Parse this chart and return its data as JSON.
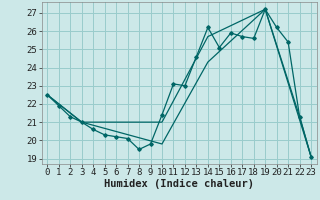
{
  "xlabel": "Humidex (Indice chaleur)",
  "background_color": "#cce8e8",
  "grid_color": "#99cccc",
  "line_color": "#006666",
  "xlim": [
    -0.5,
    23.5
  ],
  "ylim": [
    18.7,
    27.6
  ],
  "yticks": [
    19,
    20,
    21,
    22,
    23,
    24,
    25,
    26,
    27
  ],
  "xticks": [
    0,
    1,
    2,
    3,
    4,
    5,
    6,
    7,
    8,
    9,
    10,
    11,
    12,
    13,
    14,
    15,
    16,
    17,
    18,
    19,
    20,
    21,
    22,
    23
  ],
  "series1_x": [
    0,
    1,
    2,
    3,
    4,
    5,
    6,
    7,
    8,
    9,
    10,
    11,
    12,
    13,
    14,
    15,
    16,
    17,
    18,
    19,
    20,
    21,
    22,
    23
  ],
  "series1_y": [
    22.5,
    21.9,
    21.3,
    21.0,
    20.6,
    20.3,
    20.2,
    20.1,
    19.5,
    19.8,
    21.4,
    23.1,
    23.0,
    24.6,
    26.2,
    25.1,
    25.9,
    25.7,
    25.6,
    27.2,
    26.2,
    25.4,
    21.3,
    19.1
  ],
  "series2_x": [
    0,
    3,
    10,
    14,
    19,
    22,
    23
  ],
  "series2_y": [
    22.5,
    21.0,
    21.0,
    25.7,
    27.2,
    21.3,
    19.1
  ],
  "series3_x": [
    0,
    3,
    10,
    14,
    19,
    23
  ],
  "series3_y": [
    22.5,
    21.0,
    19.8,
    24.3,
    27.2,
    19.1
  ],
  "fontsize_tick": 6.5,
  "fontsize_label": 7.5
}
